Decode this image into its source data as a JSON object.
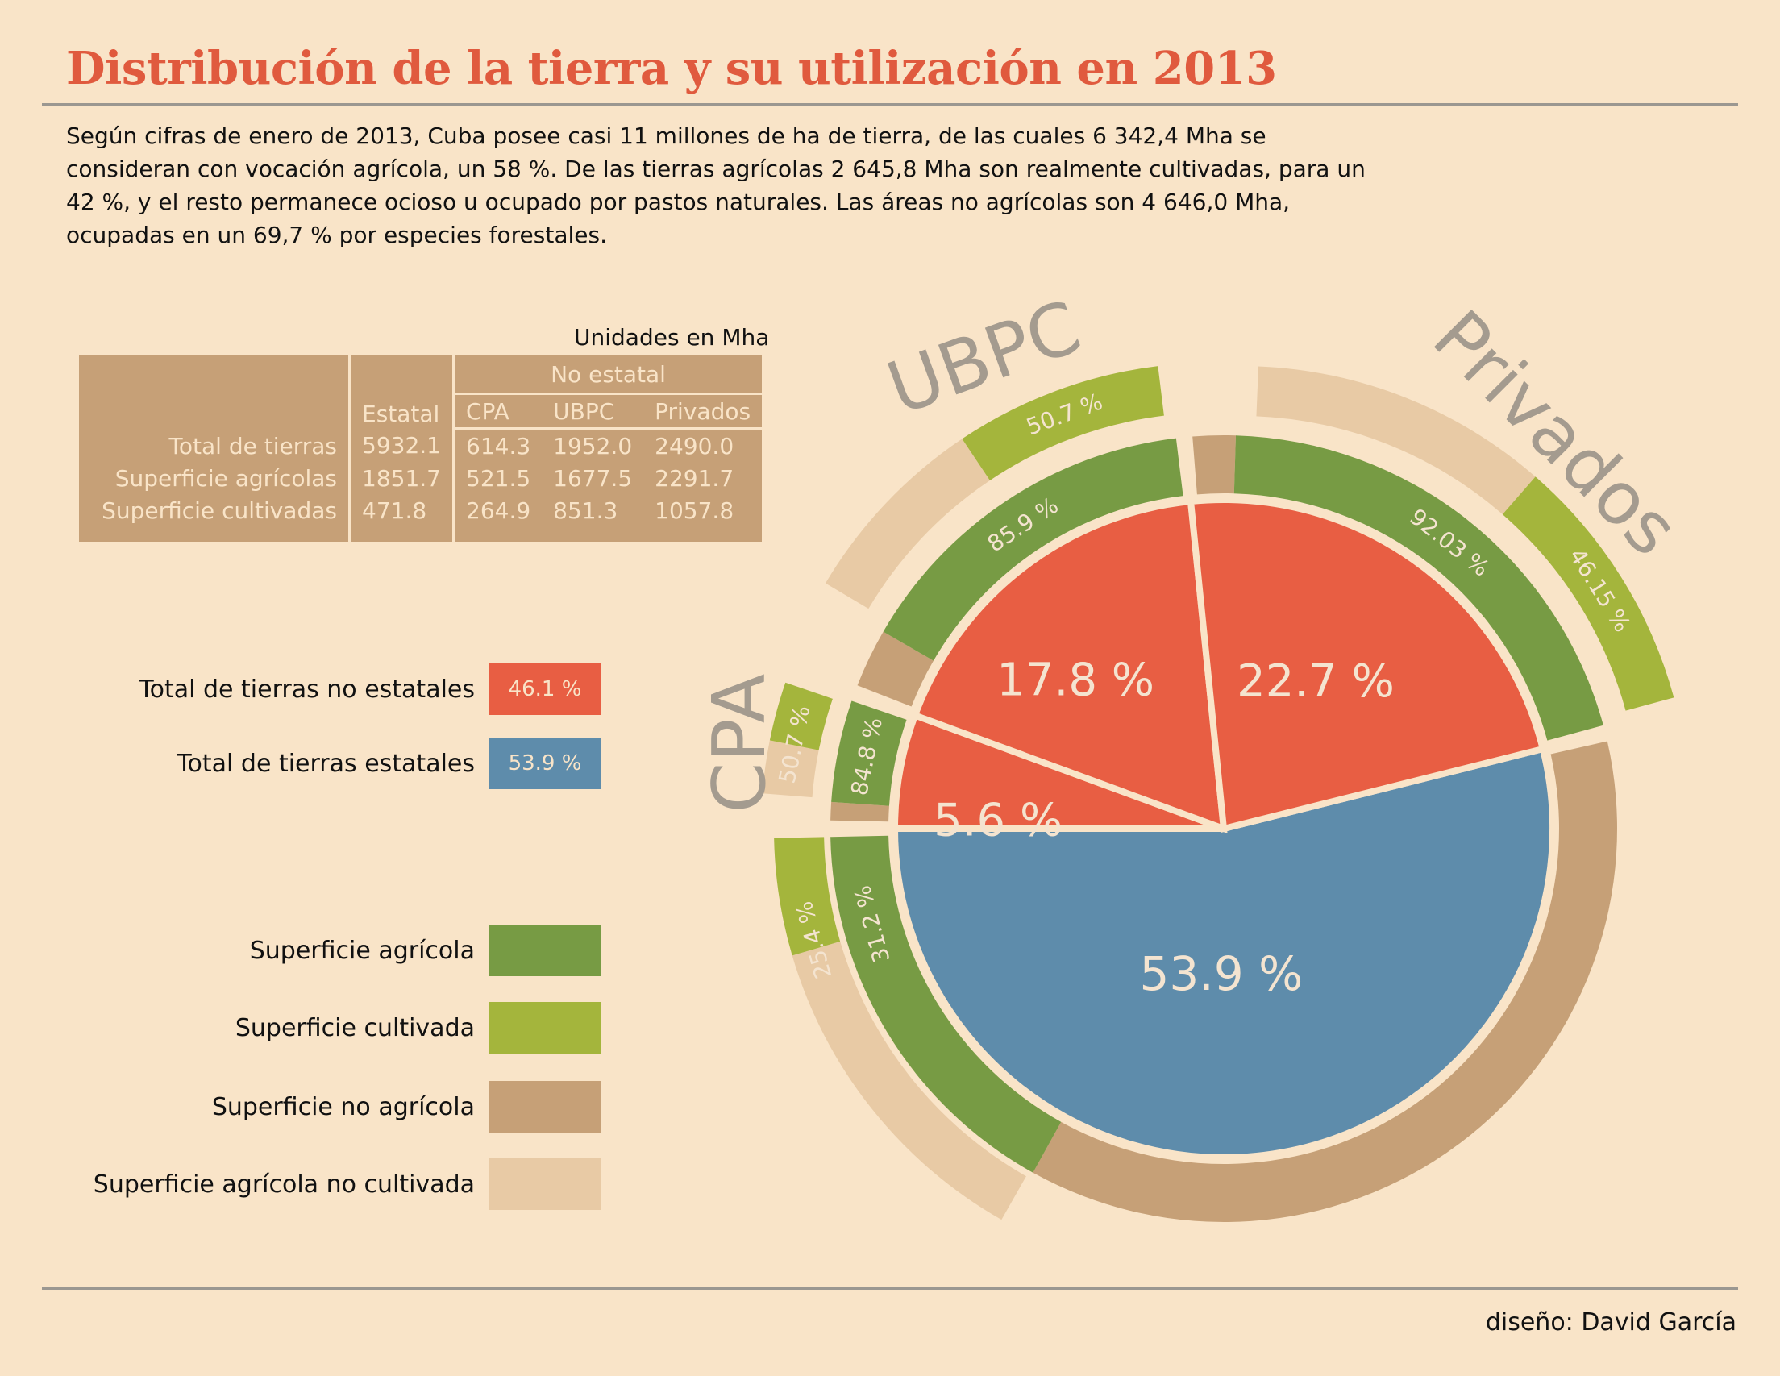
{
  "title": "Distribución de la tierra y su utilización en 2013",
  "intro": "Según cifras de enero de 2013, Cuba posee casi 11 millones de ha de tierra, de las cuales 6 342,4 Mha se consideran con vocación agrícola, un 58 %. De las tierras agrícolas 2 645,8 Mha son realmente cultivadas, para un 42 %, y el resto permanece ocioso u ocupado por pastos naturales. Las áreas no agrícolas son 4 646,0 Mha, ocupadas en un 69,7 % por especies forestales.",
  "table": {
    "units": "Unidades en Mha",
    "group_header": "No estatal",
    "col_estatal": "Estatal",
    "subcolumns": [
      "CPA",
      "UBPC",
      "Privados"
    ],
    "rows": [
      {
        "label": "Total de tierras",
        "values": [
          "5932.1",
          "614.3",
          "1952.0",
          "2490.0"
        ]
      },
      {
        "label": "Superficie agrícolas",
        "values": [
          "1851.7",
          "521.5",
          "1677.5",
          "2291.7"
        ]
      },
      {
        "label": "Superficie cultivadas",
        "values": [
          "471.8",
          "264.9",
          "851.3",
          "1057.8"
        ]
      }
    ]
  },
  "legend_ownership": [
    {
      "label": "Total de tierras no estatales",
      "value": "46.1 %",
      "color": "#e85e43"
    },
    {
      "label": "Total de tierras estatales",
      "value": "53.9 %",
      "color": "#5e8cab"
    }
  ],
  "legend_usage": [
    {
      "label": "Superficie agrícola",
      "color": "#779b44"
    },
    {
      "label": "Superficie cultivada",
      "color": "#a4b53c"
    },
    {
      "label": "Superficie no agrícola",
      "color": "#c6a077"
    },
    {
      "label": "Superficie agrícola no  cultivada",
      "color": "#e8caa5"
    }
  ],
  "credit": "diseño: David García",
  "chart_data": {
    "type": "pie",
    "title": "",
    "slices": [
      {
        "name": "Estatal",
        "percent": 53.9,
        "label": "53.9 %",
        "color": "#5e8cab",
        "agricultural_share": 31.2,
        "agricultural_label": "31.2 %",
        "cultivated_share": 25.4,
        "cultivated_label": "25.4 %"
      },
      {
        "name": "CPA",
        "percent": 5.6,
        "label": "5.6 %",
        "color": "#e85e43",
        "agricultural_share": 84.8,
        "agricultural_label": "84.8 %",
        "cultivated_share": 50.7,
        "cultivated_label": "50.7 %",
        "outer_label": "CPA"
      },
      {
        "name": "UBPC",
        "percent": 17.8,
        "label": "17.8 %",
        "color": "#e85e43",
        "agricultural_share": 85.9,
        "agricultural_label": "85.9 %",
        "cultivated_share": 50.7,
        "cultivated_label": "50.7 %",
        "outer_label": "UBPC"
      },
      {
        "name": "Privados",
        "percent": 22.7,
        "label": "22.7 %",
        "color": "#e85e43",
        "agricultural_share": 92.03,
        "agricultural_label": "92.03 %",
        "cultivated_share": 46.15,
        "cultivated_label": "46.15 %",
        "outer_label": "Privados"
      }
    ],
    "colors": {
      "agricultural": "#779b44",
      "non_agricultural": "#c6a077",
      "cultivated": "#a4b53c",
      "agricultural_not_cultivated": "#e8caa5"
    }
  }
}
